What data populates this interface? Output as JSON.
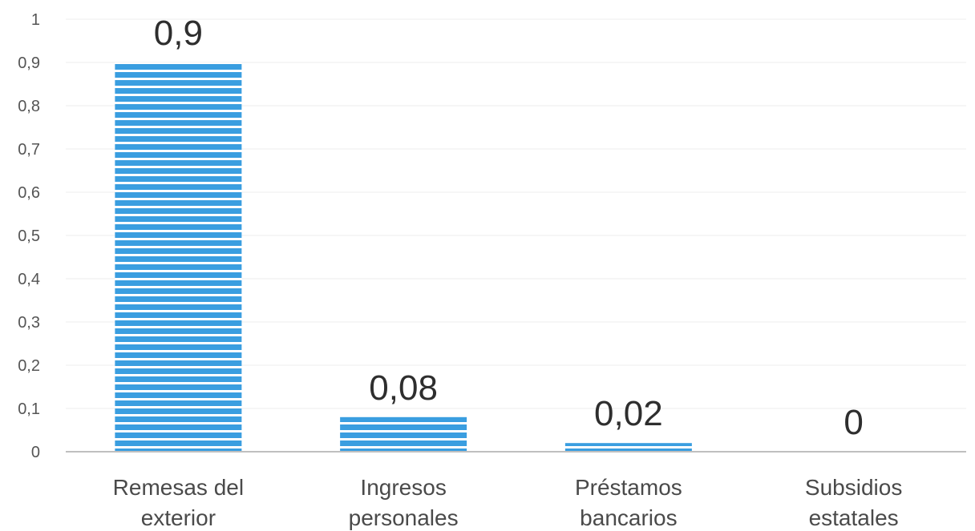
{
  "chart_data": {
    "type": "bar",
    "categories": [
      [
        "Remesas del",
        "exterior"
      ],
      [
        "Ingresos",
        "personales"
      ],
      [
        "Préstamos",
        "bancarios"
      ],
      [
        "Subsidios",
        "estatales"
      ]
    ],
    "values": [
      0.9,
      0.08,
      0.02,
      0
    ],
    "data_labels": [
      "0,9",
      "0,08",
      "0,02",
      "0"
    ],
    "yticks": [
      "0",
      "0,1",
      "0,2",
      "0,3",
      "0,4",
      "0,5",
      "0,6",
      "0,7",
      "0,8",
      "0,9",
      "1"
    ],
    "ylim": [
      0,
      1
    ],
    "title": "",
    "xlabel": "",
    "ylabel": "",
    "grid": true,
    "legend": "none",
    "bar_color": "#3a9ee0",
    "stripe_color": "#ffffff"
  }
}
